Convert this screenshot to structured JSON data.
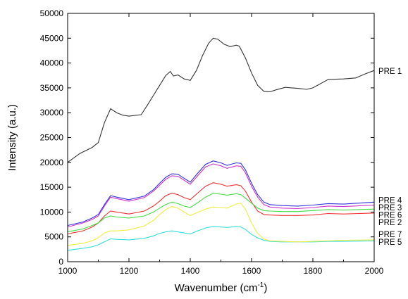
{
  "chart_data": {
    "type": "line",
    "title": "",
    "xlabel": "Wavenumber (cm",
    "xlabel_sup": "-1",
    "xlabel_tail": ")",
    "ylabel": "Intensity (a.u.)",
    "xlim": [
      1000,
      2000
    ],
    "ylim": [
      0,
      50000
    ],
    "xticks": [
      1000,
      1200,
      1400,
      1600,
      1800,
      2000
    ],
    "yticks": [
      0,
      5000,
      10000,
      15000,
      20000,
      25000,
      30000,
      35000,
      40000,
      45000,
      50000
    ],
    "grid": false,
    "legend": "labels at right end of each series",
    "series": [
      {
        "name": "PRE 1",
        "color": "#333333",
        "points": [
          [
            1000,
            20000
          ],
          [
            1040,
            21800
          ],
          [
            1080,
            23000
          ],
          [
            1100,
            24000
          ],
          [
            1120,
            28000
          ],
          [
            1140,
            30800
          ],
          [
            1160,
            30000
          ],
          [
            1180,
            29500
          ],
          [
            1200,
            29300
          ],
          [
            1240,
            29600
          ],
          [
            1260,
            31500
          ],
          [
            1280,
            33500
          ],
          [
            1300,
            35500
          ],
          [
            1320,
            37500
          ],
          [
            1335,
            38300
          ],
          [
            1345,
            37400
          ],
          [
            1360,
            37600
          ],
          [
            1380,
            36800
          ],
          [
            1400,
            36500
          ],
          [
            1420,
            38500
          ],
          [
            1440,
            41500
          ],
          [
            1460,
            44000
          ],
          [
            1475,
            45000
          ],
          [
            1490,
            44800
          ],
          [
            1510,
            43800
          ],
          [
            1530,
            43300
          ],
          [
            1550,
            43600
          ],
          [
            1560,
            43400
          ],
          [
            1580,
            41000
          ],
          [
            1600,
            38000
          ],
          [
            1620,
            35500
          ],
          [
            1640,
            34300
          ],
          [
            1660,
            34200
          ],
          [
            1680,
            34600
          ],
          [
            1710,
            35100
          ],
          [
            1750,
            34900
          ],
          [
            1780,
            34700
          ],
          [
            1800,
            35000
          ],
          [
            1850,
            36700
          ],
          [
            1900,
            36800
          ],
          [
            1940,
            37000
          ],
          [
            1970,
            37800
          ],
          [
            2000,
            38500
          ]
        ]
      },
      {
        "name": "PRE 4",
        "color": "#3333dd",
        "points": [
          [
            1000,
            7300
          ],
          [
            1050,
            8000
          ],
          [
            1080,
            8800
          ],
          [
            1100,
            9500
          ],
          [
            1120,
            11500
          ],
          [
            1140,
            13300
          ],
          [
            1160,
            13000
          ],
          [
            1200,
            12500
          ],
          [
            1250,
            13200
          ],
          [
            1280,
            14500
          ],
          [
            1300,
            15800
          ],
          [
            1320,
            17000
          ],
          [
            1340,
            17700
          ],
          [
            1360,
            17600
          ],
          [
            1380,
            16800
          ],
          [
            1400,
            16000
          ],
          [
            1420,
            17500
          ],
          [
            1450,
            19600
          ],
          [
            1475,
            20300
          ],
          [
            1500,
            19900
          ],
          [
            1520,
            19400
          ],
          [
            1550,
            19900
          ],
          [
            1565,
            19800
          ],
          [
            1580,
            18500
          ],
          [
            1600,
            15800
          ],
          [
            1620,
            13500
          ],
          [
            1640,
            12000
          ],
          [
            1660,
            11500
          ],
          [
            1700,
            11300
          ],
          [
            1750,
            11200
          ],
          [
            1800,
            11400
          ],
          [
            1850,
            11700
          ],
          [
            1900,
            11600
          ],
          [
            2000,
            12000
          ]
        ]
      },
      {
        "name": "PRE 3",
        "color": "#cc33cc",
        "points": [
          [
            1000,
            7000
          ],
          [
            1050,
            7800
          ],
          [
            1080,
            8500
          ],
          [
            1100,
            9200
          ],
          [
            1120,
            11200
          ],
          [
            1140,
            13000
          ],
          [
            1160,
            12700
          ],
          [
            1200,
            12200
          ],
          [
            1250,
            12900
          ],
          [
            1280,
            14200
          ],
          [
            1300,
            15400
          ],
          [
            1320,
            16600
          ],
          [
            1340,
            17300
          ],
          [
            1360,
            17200
          ],
          [
            1380,
            16400
          ],
          [
            1400,
            15600
          ],
          [
            1420,
            17000
          ],
          [
            1450,
            19100
          ],
          [
            1475,
            19700
          ],
          [
            1500,
            19300
          ],
          [
            1520,
            18800
          ],
          [
            1550,
            19300
          ],
          [
            1565,
            19200
          ],
          [
            1580,
            17900
          ],
          [
            1600,
            15200
          ],
          [
            1620,
            13000
          ],
          [
            1640,
            11500
          ],
          [
            1660,
            11000
          ],
          [
            1700,
            10800
          ],
          [
            1750,
            10700
          ],
          [
            1800,
            10900
          ],
          [
            1850,
            11200
          ],
          [
            1900,
            11100
          ],
          [
            2000,
            11400
          ]
        ]
      },
      {
        "name": "PRE 6",
        "color": "#44dd44",
        "points": [
          [
            1000,
            6000
          ],
          [
            1050,
            6600
          ],
          [
            1080,
            7300
          ],
          [
            1100,
            7800
          ],
          [
            1120,
            8800
          ],
          [
            1140,
            9200
          ],
          [
            1160,
            9000
          ],
          [
            1200,
            8800
          ],
          [
            1250,
            9200
          ],
          [
            1280,
            10000
          ],
          [
            1300,
            10800
          ],
          [
            1320,
            11500
          ],
          [
            1340,
            12000
          ],
          [
            1360,
            11700
          ],
          [
            1380,
            11200
          ],
          [
            1400,
            10900
          ],
          [
            1420,
            11700
          ],
          [
            1450,
            13000
          ],
          [
            1475,
            13800
          ],
          [
            1500,
            13600
          ],
          [
            1520,
            13400
          ],
          [
            1550,
            13700
          ],
          [
            1565,
            13500
          ],
          [
            1580,
            12800
          ],
          [
            1600,
            11800
          ],
          [
            1620,
            10800
          ],
          [
            1640,
            10300
          ],
          [
            1660,
            10200
          ],
          [
            1700,
            10100
          ],
          [
            1750,
            10100
          ],
          [
            1800,
            10300
          ],
          [
            1850,
            10500
          ],
          [
            1900,
            10400
          ],
          [
            2000,
            10600
          ]
        ]
      },
      {
        "name": "PRE 2",
        "color": "#ee3333",
        "points": [
          [
            1000,
            5600
          ],
          [
            1050,
            6200
          ],
          [
            1080,
            7000
          ],
          [
            1100,
            7800
          ],
          [
            1120,
            9200
          ],
          [
            1140,
            10200
          ],
          [
            1160,
            10000
          ],
          [
            1200,
            9600
          ],
          [
            1250,
            10200
          ],
          [
            1280,
            11200
          ],
          [
            1300,
            12200
          ],
          [
            1320,
            13300
          ],
          [
            1340,
            13800
          ],
          [
            1360,
            13500
          ],
          [
            1380,
            12900
          ],
          [
            1400,
            12500
          ],
          [
            1420,
            13600
          ],
          [
            1450,
            15200
          ],
          [
            1475,
            15900
          ],
          [
            1500,
            15600
          ],
          [
            1520,
            15200
          ],
          [
            1550,
            15500
          ],
          [
            1565,
            15300
          ],
          [
            1580,
            14200
          ],
          [
            1600,
            12000
          ],
          [
            1620,
            10200
          ],
          [
            1640,
            9500
          ],
          [
            1660,
            9400
          ],
          [
            1700,
            9300
          ],
          [
            1750,
            9300
          ],
          [
            1800,
            9400
          ],
          [
            1850,
            9700
          ],
          [
            1900,
            9600
          ],
          [
            2000,
            9800
          ]
        ]
      },
      {
        "name": "PRE 7",
        "color": "#eeee44",
        "points": [
          [
            1000,
            3300
          ],
          [
            1050,
            3700
          ],
          [
            1080,
            4200
          ],
          [
            1100,
            4800
          ],
          [
            1120,
            5800
          ],
          [
            1140,
            6200
          ],
          [
            1160,
            6200
          ],
          [
            1200,
            6400
          ],
          [
            1250,
            7200
          ],
          [
            1280,
            8300
          ],
          [
            1300,
            9500
          ],
          [
            1320,
            10500
          ],
          [
            1340,
            11100
          ],
          [
            1360,
            10800
          ],
          [
            1380,
            10000
          ],
          [
            1400,
            9300
          ],
          [
            1420,
            9800
          ],
          [
            1450,
            10600
          ],
          [
            1475,
            11000
          ],
          [
            1500,
            10900
          ],
          [
            1520,
            10800
          ],
          [
            1550,
            11600
          ],
          [
            1565,
            11800
          ],
          [
            1580,
            10600
          ],
          [
            1600,
            7800
          ],
          [
            1620,
            5700
          ],
          [
            1640,
            4600
          ],
          [
            1660,
            4200
          ],
          [
            1700,
            4100
          ],
          [
            1750,
            4000
          ],
          [
            1800,
            4100
          ],
          [
            1850,
            4200
          ],
          [
            1900,
            4300
          ],
          [
            2000,
            4400
          ]
        ]
      },
      {
        "name": "PRE 5",
        "color": "#33dddd",
        "points": [
          [
            1000,
            2300
          ],
          [
            1050,
            2700
          ],
          [
            1080,
            3000
          ],
          [
            1100,
            3400
          ],
          [
            1120,
            4000
          ],
          [
            1140,
            4600
          ],
          [
            1160,
            4500
          ],
          [
            1200,
            4400
          ],
          [
            1250,
            4700
          ],
          [
            1280,
            5200
          ],
          [
            1300,
            5700
          ],
          [
            1320,
            6000
          ],
          [
            1340,
            6200
          ],
          [
            1360,
            6000
          ],
          [
            1380,
            5800
          ],
          [
            1400,
            5600
          ],
          [
            1420,
            6100
          ],
          [
            1450,
            6800
          ],
          [
            1475,
            7100
          ],
          [
            1500,
            7000
          ],
          [
            1520,
            6900
          ],
          [
            1550,
            7100
          ],
          [
            1565,
            7000
          ],
          [
            1580,
            6500
          ],
          [
            1600,
            5500
          ],
          [
            1620,
            4800
          ],
          [
            1640,
            4300
          ],
          [
            1660,
            4100
          ],
          [
            1700,
            4000
          ],
          [
            1750,
            4000
          ],
          [
            1800,
            4000
          ],
          [
            1850,
            4100
          ],
          [
            1900,
            4100
          ],
          [
            2000,
            4200
          ]
        ]
      }
    ]
  }
}
